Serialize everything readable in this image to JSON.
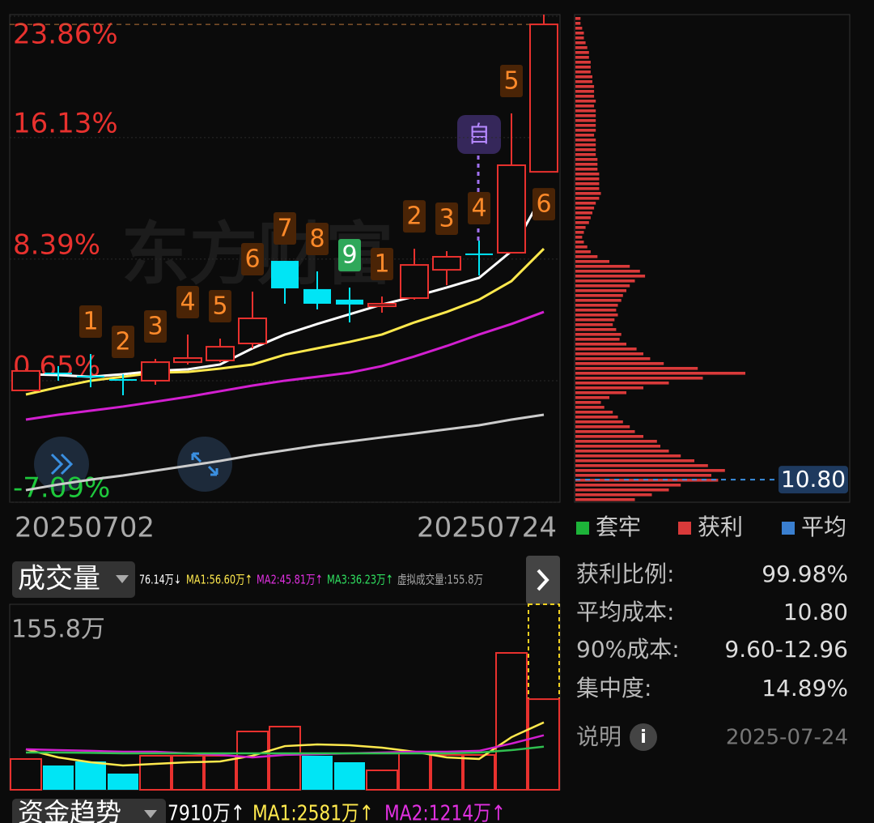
{
  "chart_data": [
    {
      "type": "candlestick",
      "x_labels": [
        "20250702",
        "20250724"
      ],
      "ylim": [
        -7.09,
        23.86
      ],
      "yticks": [
        {
          "value": 23.86,
          "label": "23.86%"
        },
        {
          "value": 16.13,
          "label": "16.13%"
        },
        {
          "value": 8.39,
          "label": "8.39%"
        },
        {
          "value": 0.65,
          "label": "0.65%"
        },
        {
          "value": -7.09,
          "label": "-7.09%"
        }
      ],
      "grid": true,
      "up_color": "#e8312e",
      "down_color": "#00e5f5",
      "neg_color": "#1ec83c",
      "candles": [
        {
          "open": 0.03,
          "high": 1.42,
          "low": -0.02,
          "close": 1.27
        },
        {
          "open": 1.16,
          "high": 1.58,
          "low": 0.65,
          "close": 1.16
        },
        {
          "open": 0.96,
          "high": 2.35,
          "low": 0.23,
          "close": 0.96
        },
        {
          "open": 0.75,
          "high": 1.06,
          "low": -0.28,
          "close": 0.75
        },
        {
          "open": 0.65,
          "high": 2.04,
          "low": 0.39,
          "close": 1.83
        },
        {
          "open": 1.83,
          "high": 3.59,
          "low": 1.68,
          "close": 2.09
        },
        {
          "open": 1.94,
          "high": 3.33,
          "low": 1.83,
          "close": 2.81
        },
        {
          "open": 3.02,
          "high": 6.32,
          "low": 2.71,
          "close": 4.62
        },
        {
          "open": 8.28,
          "high": 8.28,
          "low": 5.55,
          "close": 6.53
        },
        {
          "open": 6.48,
          "high": 7.61,
          "low": 5.19,
          "close": 5.55
        },
        {
          "open": 5.81,
          "high": 6.58,
          "low": 4.36,
          "close": 5.5
        },
        {
          "open": 5.39,
          "high": 6.01,
          "low": 4.98,
          "close": 5.55
        },
        {
          "open": 5.91,
          "high": 9.05,
          "low": 5.81,
          "close": 8.02
        },
        {
          "open": 7.71,
          "high": 8.9,
          "low": 6.73,
          "close": 8.54
        },
        {
          "open": 8.75,
          "high": 9.57,
          "low": 7.35,
          "close": 8.75
        },
        {
          "open": 8.8,
          "high": 17.67,
          "low": 8.8,
          "close": 14.37
        },
        {
          "open": 13.95,
          "high": 23.96,
          "low": 13.95,
          "close": 23.34
        }
      ],
      "td_labels": [
        null,
        null,
        "1",
        "2",
        "3",
        "4",
        "5",
        "6",
        "7",
        "8",
        "9",
        "1",
        "2",
        "3",
        "4",
        "5",
        "6"
      ],
      "td_bg": [
        null,
        null,
        "#4a2406",
        "#4a2406",
        "#4a2406",
        "#4a2406",
        "#4a2406",
        "#4a2406",
        "#4a2406",
        "#4a2406",
        "#2fa85a",
        "#4a2406",
        "#4a2406",
        "#4a2406",
        "#4a2406",
        "#4a2406",
        "#4a2406"
      ],
      "td_fg": [
        null,
        null,
        "#ff8a2a",
        "#ff8a2a",
        "#ff8a2a",
        "#ff8a2a",
        "#ff8a2a",
        "#ff8a2a",
        "#ff8a2a",
        "#ff8a2a",
        "#ffffff",
        "#ff8a2a",
        "#ff8a2a",
        "#ff8a2a",
        "#ff8a2a",
        "#ff8a2a",
        "#ff8a2a"
      ],
      "lines": [
        {
          "color": "#ffffff",
          "values": [
            1.06,
            1.01,
            0.9,
            1.06,
            1.27,
            1.37,
            1.68,
            2.71,
            3.59,
            4.26,
            4.88,
            5.5,
            6.01,
            6.58,
            7.2,
            8.9,
            12.61
          ]
        },
        {
          "color": "#ffe94d",
          "values": [
            -0.23,
            0.23,
            0.65,
            0.9,
            1.16,
            1.21,
            1.42,
            1.68,
            2.3,
            2.71,
            3.12,
            3.59,
            4.36,
            5.03,
            5.81,
            6.99,
            9.05
          ]
        },
        {
          "color": "#d21fd0",
          "values": [
            -1.83,
            -1.52,
            -1.26,
            -1.0,
            -0.69,
            -0.38,
            -0.02,
            0.34,
            0.65,
            0.9,
            1.16,
            1.58,
            2.19,
            2.86,
            3.59,
            4.26,
            5.03
          ]
        },
        {
          "color": "#cccccc",
          "values": [
            -6.32,
            -5.96,
            -5.65,
            -5.39,
            -5.08,
            -4.77,
            -4.46,
            -4.1,
            -3.79,
            -3.48,
            -3.22,
            -2.96,
            -2.71,
            -2.45,
            -2.19,
            -1.83,
            -1.52
          ]
        }
      ],
      "watermark": "东方财富",
      "badge": "自"
    },
    {
      "type": "chip-distribution",
      "xlim": [
        0,
        100
      ],
      "color": "#d93a3a",
      "values": [
        3,
        3,
        4,
        5,
        5,
        6,
        7,
        8,
        8,
        9,
        9,
        9,
        10,
        10,
        11,
        11,
        11,
        12,
        11,
        12,
        12,
        12,
        12,
        12,
        11,
        12,
        12,
        12,
        12,
        13,
        13,
        13,
        14,
        14,
        14,
        14,
        15,
        14,
        12,
        11,
        10,
        9,
        8,
        6,
        5,
        4,
        5,
        7,
        9,
        13,
        20,
        32,
        38,
        41,
        35,
        32,
        30,
        28,
        27,
        25,
        24,
        25,
        23,
        22,
        24,
        27,
        26,
        30,
        36,
        40,
        44,
        52,
        72,
        100,
        75,
        55,
        40,
        30,
        20,
        15,
        17,
        22,
        25,
        28,
        32,
        35,
        40,
        48,
        50,
        55,
        62,
        70,
        78,
        88,
        80,
        84,
        62,
        55,
        45,
        35
      ],
      "avg_line": {
        "value": -5.65,
        "label": "10.80",
        "color": "#3a8fe0"
      },
      "legend": [
        {
          "name": "套牢",
          "color": "#1db339"
        },
        {
          "name": "获利",
          "color": "#d93a3a"
        },
        {
          "name": "平均",
          "color": "#3a7fd0"
        }
      ],
      "stats": [
        {
          "label": "获利比例:",
          "value": "99.98%"
        },
        {
          "label": "平均成本:",
          "value": "10.80"
        },
        {
          "label": "90%成本:",
          "value": "9.60-12.96"
        },
        {
          "label": "集中度:",
          "value": "14.89%"
        }
      ],
      "note": "说明",
      "date": "2025-07-24"
    },
    {
      "type": "volume",
      "title": "成交量",
      "header": [
        {
          "text": "76.14万↓",
          "color": "#ffffff"
        },
        {
          "text": "MA1:56.60万↑",
          "color": "#ffe94d"
        },
        {
          "text": "MA2:45.81万↑",
          "color": "#e030e0"
        },
        {
          "text": "MA3:36.23万↑",
          "color": "#30e060"
        },
        {
          "text": "虚拟成交量:155.8万",
          "color": "#aaaaaa"
        }
      ],
      "ylim": [
        0,
        155.8
      ],
      "yticks": [
        {
          "value": 155.8,
          "label": "155.8万"
        }
      ],
      "values": [
        25.85,
        20.41,
        23.81,
        13.61,
        28.57,
        28.57,
        28.57,
        48.98,
        53.07,
        28.57,
        23.13,
        16.33,
        30.61,
        29.25,
        29.25,
        114.97,
        76.14
      ],
      "colors": [
        "#e8312e",
        "#00e5f5",
        "#00e5f5",
        "#00e5f5",
        "#e8312e",
        "#e8312e",
        "#e8312e",
        "#e8312e",
        "#e8312e",
        "#00e5f5",
        "#00e5f5",
        "#e8312e",
        "#e8312e",
        "#e8312e",
        "#e8312e",
        "#e8312e",
        "#e8312e"
      ],
      "virtual": 155.8,
      "virtual_color": "#f0d020",
      "lines": [
        {
          "color": "#ffe94d",
          "values": [
            34.0,
            27.2,
            23.1,
            20.4,
            21.8,
            23.1,
            23.8,
            28.6,
            36.7,
            38.1,
            37.4,
            35.4,
            32.0,
            27.2,
            25.9,
            44.2,
            56.6
          ]
        },
        {
          "color": "#d21fd0",
          "values": [
            34.0,
            33.3,
            32.7,
            32.0,
            32.0,
            30.6,
            29.3,
            27.2,
            29.3,
            29.9,
            30.6,
            31.3,
            32.0,
            32.0,
            32.7,
            38.8,
            45.81
          ]
        },
        {
          "color": "#30c050",
          "values": [
            31.3,
            31.3,
            31.0,
            30.6,
            30.6,
            30.6,
            30.6,
            30.6,
            30.6,
            30.6,
            30.6,
            30.6,
            30.6,
            30.6,
            31.3,
            33.3,
            36.23
          ]
        }
      ]
    }
  ],
  "footer": {
    "title": "资金趋势",
    "items": [
      {
        "text": "7910万↑",
        "color": "#ffffff"
      },
      {
        "text": "MA1:2581万↑",
        "color": "#ffe94d"
      },
      {
        "text": "MA2:1214万↑",
        "color": "#e030e0"
      }
    ]
  }
}
